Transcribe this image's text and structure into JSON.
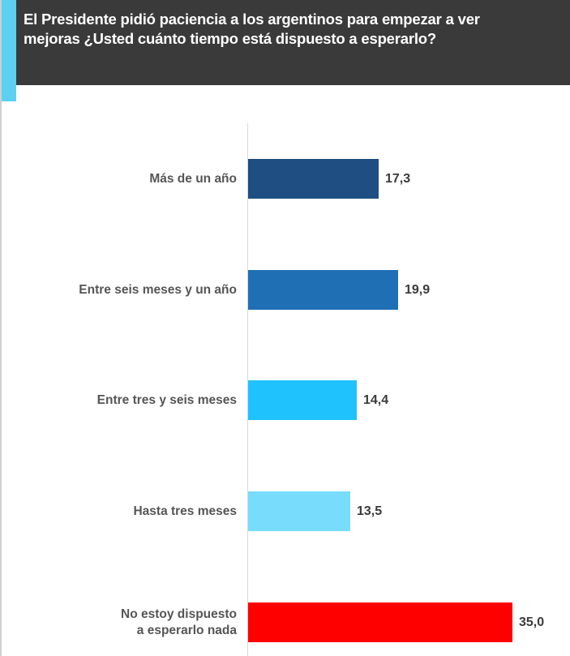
{
  "header": {
    "title_line1": "El Presidente pidió paciencia a los argentinos para empezar a ver",
    "title_line2": "mejoras ¿Usted cuánto tiempo está dispuesto a esperarlo?"
  },
  "colors": {
    "header_bg": "#3a3a3a",
    "accent": "#5bd0f0"
  },
  "chart_data": {
    "type": "bar",
    "orientation": "horizontal",
    "title": "El Presidente pidió paciencia a los argentinos para empezar a ver mejoras ¿Usted cuánto tiempo está dispuesto a esperarlo?",
    "categories": [
      "Más de un año",
      "Entre seis meses y un año",
      "Entre tres y seis meses",
      "Hasta tres meses",
      "No estoy dispuesto a esperarlo nada"
    ],
    "values": [
      17.3,
      19.9,
      14.4,
      13.5,
      35.0
    ],
    "value_labels": [
      "17,3",
      "19,9",
      "14,4",
      "13,5",
      "35,0"
    ],
    "bar_colors": [
      "#1f4e82",
      "#1f6fb5",
      "#1fc2fc",
      "#78dcfc",
      "#ff0000"
    ],
    "xlabel": "",
    "ylabel": "",
    "grid": false,
    "legend": "none",
    "xlim": [
      0,
      35
    ]
  },
  "rows": [
    {
      "label_line1": "Más de un año",
      "label_line2": "",
      "value": "17,3"
    },
    {
      "label_line1": "Entre seis meses y un año",
      "label_line2": "",
      "value": "19,9"
    },
    {
      "label_line1": "Entre tres y seis meses",
      "label_line2": "",
      "value": "14,4"
    },
    {
      "label_line1": "Hasta tres meses",
      "label_line2": "",
      "value": "13,5"
    },
    {
      "label_line1": "No estoy dispuesto",
      "label_line2": "a esperarlo nada",
      "value": "35,0"
    }
  ]
}
